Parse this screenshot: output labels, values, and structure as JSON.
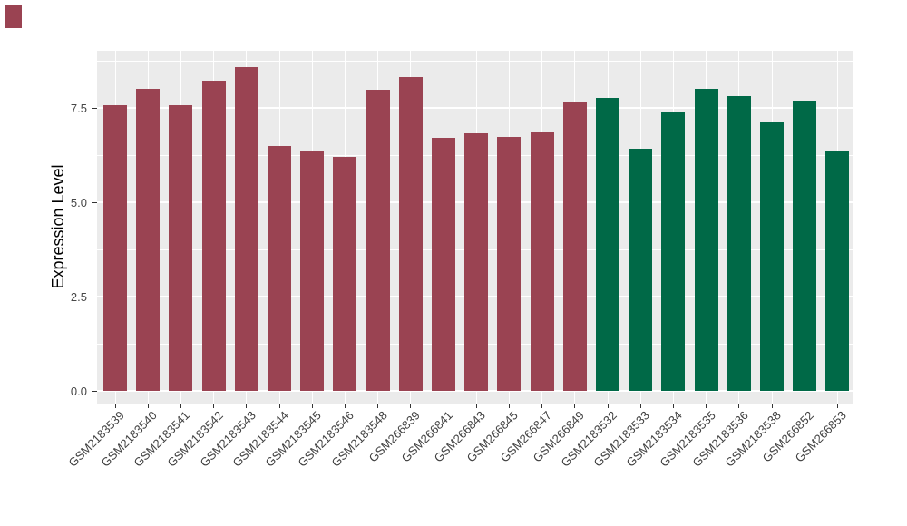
{
  "background": "#ffffff",
  "corner_marker": {
    "color": "#9a4352"
  },
  "chart_data": {
    "type": "bar",
    "title": "",
    "xlabel": "",
    "ylabel": "Expression Level",
    "ylim": [
      0,
      9.05
    ],
    "grid": "on",
    "legend_position": "none",
    "panel_bg": "#ebebeb",
    "grid_color": "#ffffff",
    "tick_color": "#333333",
    "ytick_values": [
      0,
      2.5,
      5,
      7.5
    ],
    "ytick_labels": [
      "0.0",
      "2.5",
      "5.0",
      "7.5"
    ],
    "minor_gridlines": [
      1.25,
      3.75,
      6.25,
      8.75
    ],
    "categories": [
      "GSM2183539",
      "GSM2183540",
      "GSM2183541",
      "GSM2183542",
      "GSM2183543",
      "GSM2183544",
      "GSM2183545",
      "GSM2183546",
      "GSM2183548",
      "GSM266839",
      "GSM266841",
      "GSM266843",
      "GSM266845",
      "GSM266847",
      "GSM266849",
      "GSM2183532",
      "GSM2183533",
      "GSM2183534",
      "GSM2183535",
      "GSM2183536",
      "GSM2183538",
      "GSM266852",
      "GSM266853"
    ],
    "values": [
      7.58,
      8.0,
      7.57,
      8.21,
      8.57,
      6.5,
      6.35,
      6.21,
      7.99,
      8.31,
      6.7,
      6.82,
      6.74,
      6.88,
      7.66,
      7.77,
      6.42,
      7.4,
      8.01,
      7.82,
      7.12,
      7.7,
      6.38
    ],
    "bar_colors": [
      "#9a4352",
      "#9a4352",
      "#9a4352",
      "#9a4352",
      "#9a4352",
      "#9a4352",
      "#9a4352",
      "#9a4352",
      "#9a4352",
      "#9a4352",
      "#9a4352",
      "#9a4352",
      "#9a4352",
      "#9a4352",
      "#9a4352",
      "#006947",
      "#006947",
      "#006947",
      "#006947",
      "#006947",
      "#006947",
      "#006947",
      "#006947"
    ]
  }
}
